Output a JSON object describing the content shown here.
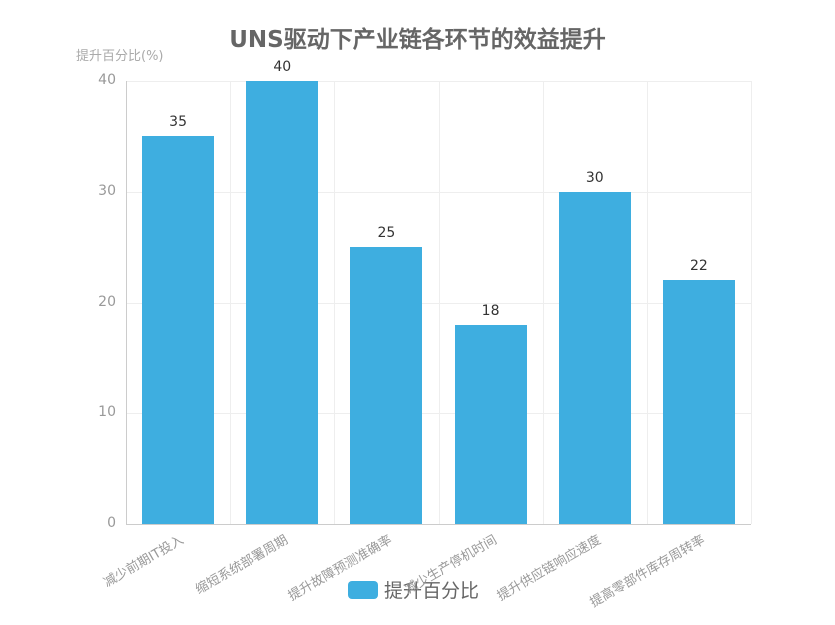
{
  "chart_data": {
    "type": "bar",
    "title": "UNS驱动下产业链各环节的效益提升",
    "xlabel": "",
    "ylabel": "提升百分比(%)",
    "ylim": [
      0,
      40
    ],
    "yticks": [
      0,
      10,
      20,
      30,
      40
    ],
    "grid": true,
    "legend_position": "bottom",
    "categories": [
      "减少前期IT投入",
      "缩短系统部署周期",
      "提升故障预测准确率",
      "减少生产停机时间",
      "提升供应链响应速度",
      "提高零部件库存周转率"
    ],
    "series": [
      {
        "name": "提升百分比",
        "color": "#3eaee0",
        "values": [
          35,
          40,
          25,
          18,
          30,
          22
        ]
      }
    ]
  }
}
